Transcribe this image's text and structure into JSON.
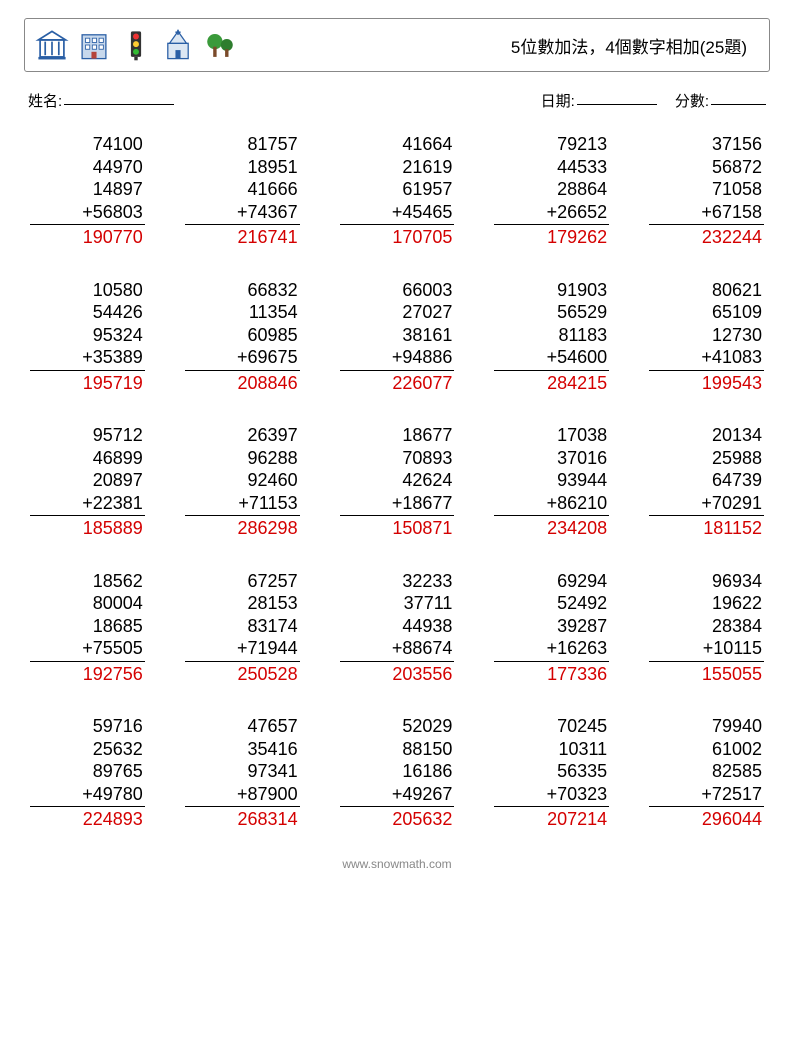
{
  "title": "5位數加法，4個數字相加(25題)",
  "labels": {
    "name": "姓名:",
    "date": "日期:",
    "score": "分數:"
  },
  "footer": "www.snowmath.com",
  "style": {
    "answer_color": "#d40000",
    "text_color": "#000000",
    "background": "#ffffff",
    "font_size_problem": 18,
    "columns": 5,
    "rows": 5
  },
  "problems": [
    {
      "addends": [
        74100,
        44970,
        14897,
        56803
      ],
      "answer": 190770
    },
    {
      "addends": [
        81757,
        18951,
        41666,
        74367
      ],
      "answer": 216741
    },
    {
      "addends": [
        41664,
        21619,
        61957,
        45465
      ],
      "answer": 170705
    },
    {
      "addends": [
        79213,
        44533,
        28864,
        26652
      ],
      "answer": 179262
    },
    {
      "addends": [
        37156,
        56872,
        71058,
        67158
      ],
      "answer": 232244
    },
    {
      "addends": [
        10580,
        54426,
        95324,
        35389
      ],
      "answer": 195719
    },
    {
      "addends": [
        66832,
        11354,
        60985,
        69675
      ],
      "answer": 208846
    },
    {
      "addends": [
        66003,
        27027,
        38161,
        94886
      ],
      "answer": 226077
    },
    {
      "addends": [
        91903,
        56529,
        81183,
        54600
      ],
      "answer": 284215
    },
    {
      "addends": [
        80621,
        65109,
        12730,
        41083
      ],
      "answer": 199543
    },
    {
      "addends": [
        95712,
        46899,
        20897,
        22381
      ],
      "answer": 185889
    },
    {
      "addends": [
        26397,
        96288,
        92460,
        71153
      ],
      "answer": 286298
    },
    {
      "addends": [
        18677,
        70893,
        42624,
        18677
      ],
      "answer": 150871
    },
    {
      "addends": [
        17038,
        37016,
        93944,
        86210
      ],
      "answer": 234208
    },
    {
      "addends": [
        20134,
        25988,
        64739,
        70291
      ],
      "answer": 181152
    },
    {
      "addends": [
        18562,
        80004,
        18685,
        75505
      ],
      "answer": 192756
    },
    {
      "addends": [
        67257,
        28153,
        83174,
        71944
      ],
      "answer": 250528
    },
    {
      "addends": [
        32233,
        37711,
        44938,
        88674
      ],
      "answer": 203556
    },
    {
      "addends": [
        69294,
        52492,
        39287,
        16263
      ],
      "answer": 177336
    },
    {
      "addends": [
        96934,
        19622,
        28384,
        10115
      ],
      "answer": 155055
    },
    {
      "addends": [
        59716,
        25632,
        89765,
        49780
      ],
      "answer": 224893
    },
    {
      "addends": [
        47657,
        35416,
        97341,
        87900
      ],
      "answer": 268314
    },
    {
      "addends": [
        52029,
        88150,
        16186,
        49267
      ],
      "answer": 205632
    },
    {
      "addends": [
        70245,
        10311,
        56335,
        70323
      ],
      "answer": 207214
    },
    {
      "addends": [
        79940,
        61002,
        82585,
        72517
      ],
      "answer": 296044
    }
  ]
}
